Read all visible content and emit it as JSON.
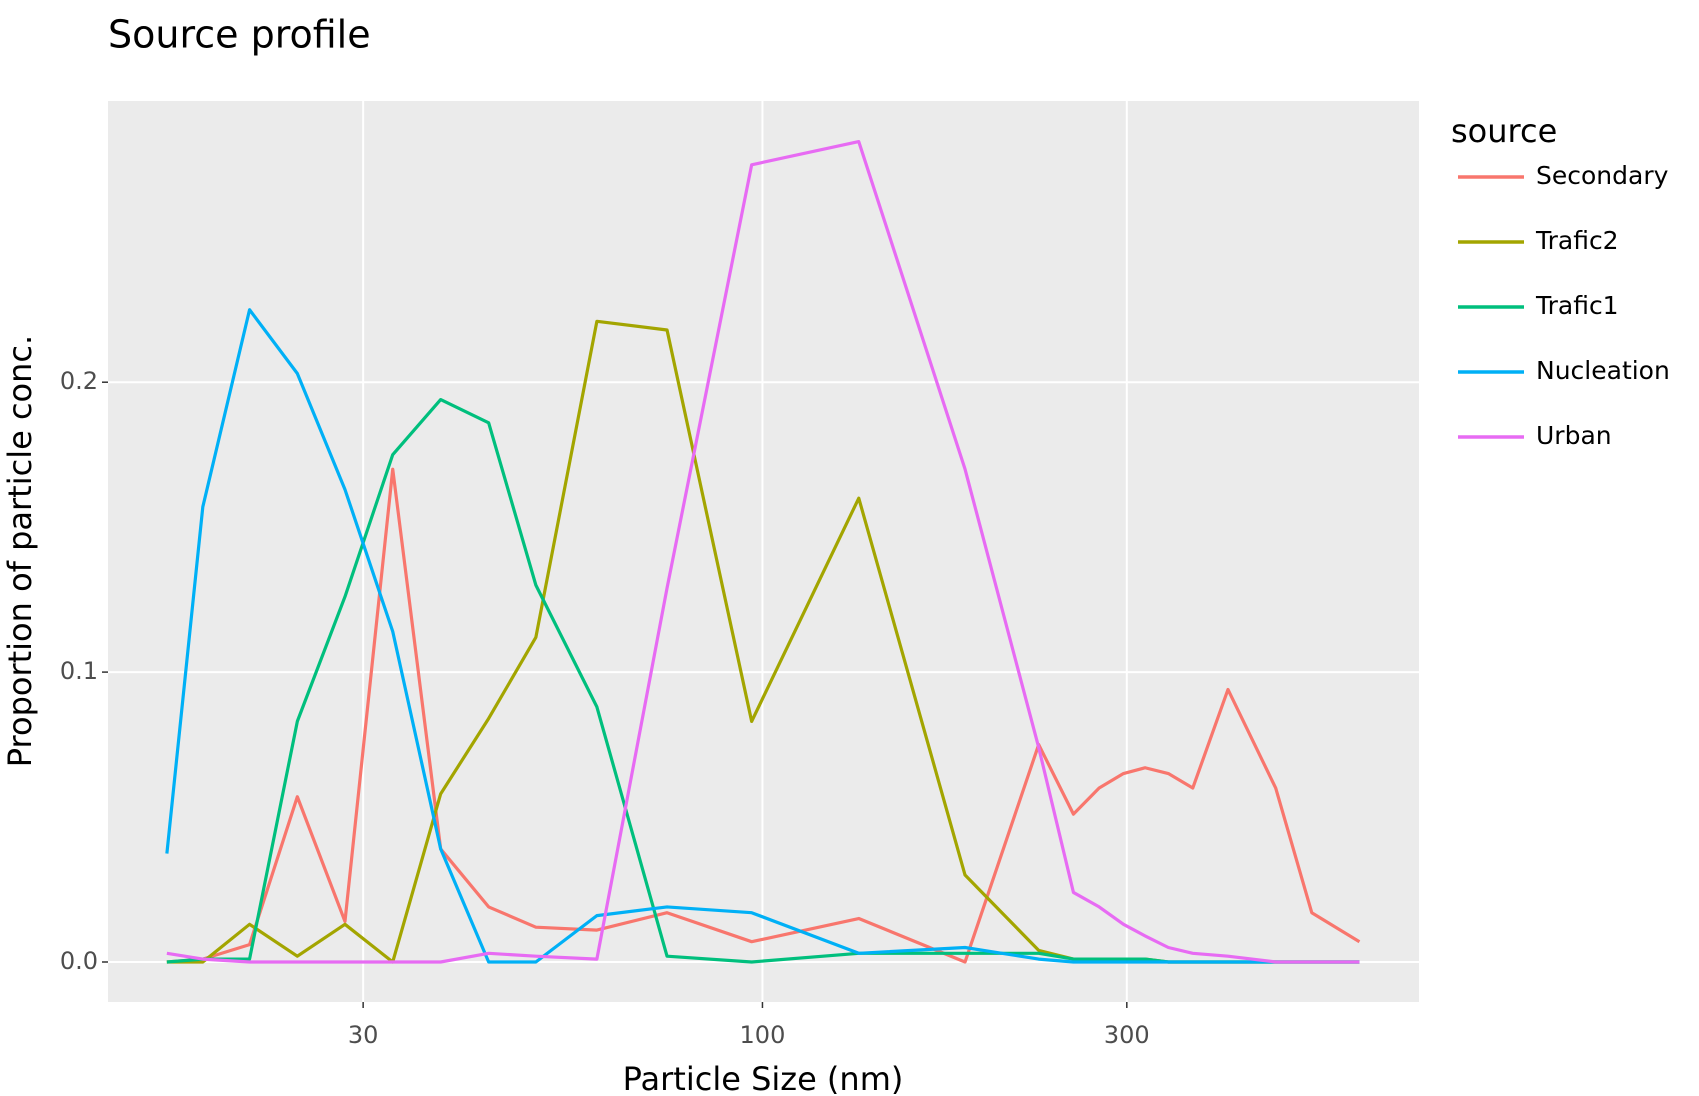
{
  "chart_data": {
    "type": "line",
    "title": "Source profile",
    "x_label": "Particle Size (nm)",
    "y_label": "Proportion of particle conc.",
    "legend_title": "source",
    "legend_position": "right",
    "x_log": true,
    "grid": true,
    "x": [
      16.6,
      18.5,
      21.3,
      24.6,
      28.4,
      32.8,
      37.9,
      43.8,
      50.5,
      60.7,
      75.0,
      96.8,
      133.7,
      184.2,
      230,
      255.4,
      276,
      297,
      317,
      340,
      366,
      407,
      470,
      524,
      605
    ],
    "xlim": [
      13.9,
      724
    ],
    "xticks": [
      30,
      100,
      300
    ],
    "ylim": [
      -0.0138,
      0.297
    ],
    "yticks": [
      {
        "value": 0,
        "label": "0.0"
      },
      0.1,
      0.2
    ],
    "series": [
      {
        "name": "Secondary",
        "color": "#F8766D",
        "values": [
          0,
          0.001,
          0.006,
          0.057,
          0.014,
          0.17,
          0.039,
          0.019,
          0.012,
          0.011,
          0.017,
          0.007,
          0.015,
          0,
          0.075,
          0.051,
          0.06,
          0.065,
          0.067,
          0.065,
          0.06,
          0.094,
          0.06,
          0.017,
          0.007
        ]
      },
      {
        "name": "Trafic2",
        "color": "#A3A500",
        "values": [
          0,
          0,
          0.013,
          0.002,
          0.013,
          0,
          0.058,
          0.084,
          0.112,
          0.221,
          0.218,
          0.083,
          0.16,
          0.03,
          0.004,
          0.001,
          0.001,
          0.001,
          0.001,
          0,
          0,
          0,
          0,
          0,
          0
        ]
      },
      {
        "name": "Trafic1",
        "color": "#00BF7D",
        "values": [
          0,
          0.001,
          0.001,
          0.083,
          0.126,
          0.175,
          0.194,
          0.186,
          0.13,
          0.088,
          0.002,
          0,
          0.003,
          0.003,
          0.003,
          0.001,
          0.001,
          0.001,
          0.001,
          0,
          0,
          0,
          0,
          0,
          0
        ]
      },
      {
        "name": "Nucleation",
        "color": "#00B0F6",
        "values": [
          0.0374,
          0.157,
          0.225,
          0.203,
          0.163,
          0.114,
          0.039,
          0,
          0,
          0.016,
          0.019,
          0.017,
          0.003,
          0.005,
          0.001,
          0,
          0,
          0,
          0,
          0,
          0,
          0,
          0,
          0,
          0
        ]
      },
      {
        "name": "Urban",
        "color": "#E76BF3",
        "values": [
          0.003,
          0.001,
          0,
          0,
          0,
          0,
          0,
          0.003,
          0.002,
          0.001,
          0.129,
          0.275,
          0.283,
          0.17,
          0.074,
          0.024,
          0.019,
          0.013,
          0.009,
          0.005,
          0.003,
          0.002,
          0,
          0,
          0
        ]
      }
    ]
  }
}
